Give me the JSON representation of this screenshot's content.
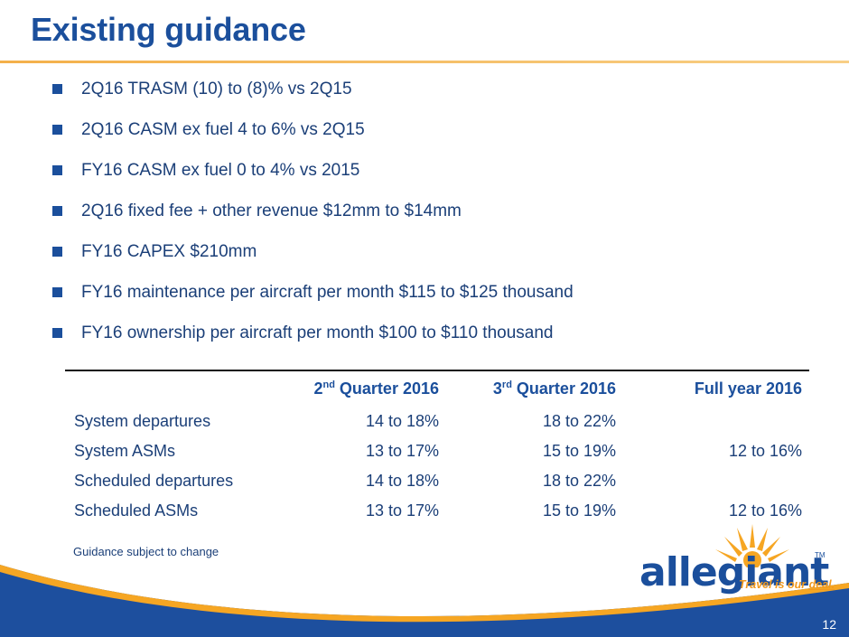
{
  "slide": {
    "title": "Existing guidance",
    "page_number": "12",
    "note": "Guidance subject to change"
  },
  "bullets": [
    "2Q16 TRASM (10) to (8)% vs 2Q15",
    "2Q16 CASM ex fuel 4 to 6% vs 2Q15",
    "FY16 CASM ex fuel 0 to 4% vs 2015",
    "2Q16 fixed fee + other revenue $12mm to $14mm",
    "FY16 CAPEX $210mm",
    "FY16 maintenance per aircraft per month $115 to $125 thousand",
    "FY16 ownership per aircraft per month $100 to $110 thousand"
  ],
  "table": {
    "headers": {
      "q2": {
        "num": "2",
        "sup": "nd",
        "rest": " Quarter 2016"
      },
      "q3": {
        "num": "3",
        "sup": "rd",
        "rest": " Quarter 2016"
      },
      "fy": "Full year 2016"
    },
    "rows": [
      {
        "label": "System departures",
        "q2": "14 to 18%",
        "q3": "18 to 22%",
        "fy": ""
      },
      {
        "label": "System ASMs",
        "q2": "13 to 17%",
        "q3": "15 to 19%",
        "fy": "12 to 16%"
      },
      {
        "label": "Scheduled departures",
        "q2": "14 to 18%",
        "q3": "18 to 22%",
        "fy": ""
      },
      {
        "label": "Scheduled ASMs",
        "q2": "13 to 17%",
        "q3": "15 to 19%",
        "fy": "12 to 16%"
      }
    ]
  },
  "logo": {
    "wordmark": "allegiant",
    "trademark": "TM",
    "tagline_prefix": "Travel is our ",
    "tagline_emphasis": "deal."
  },
  "colors": {
    "title": "#1b4f9c",
    "accent_rule": "#f4b04a",
    "footer_blue": "#1d4f9e",
    "sun": "#f6a623"
  }
}
